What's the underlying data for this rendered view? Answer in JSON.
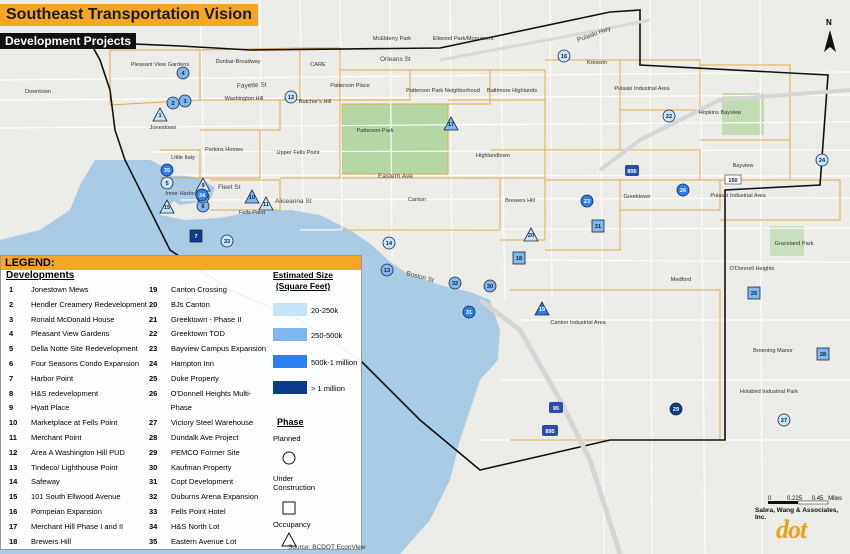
{
  "title": "Southeast Transportation Vision",
  "subtitle": "Development Projects",
  "legend": {
    "header": "LEGEND:",
    "developments_title": "Developments",
    "developments": [
      {
        "num": "1",
        "name": "Jonestown Mews"
      },
      {
        "num": "2",
        "name": "Hendler Creamery Redevelopment"
      },
      {
        "num": "3",
        "name": "Ronald McDonald House"
      },
      {
        "num": "4",
        "name": "Pleasant View Gardens"
      },
      {
        "num": "5",
        "name": "Della Notte Site Redevelopment"
      },
      {
        "num": "6",
        "name": "Four Seasons Condo Expansion"
      },
      {
        "num": "7",
        "name": "Harbor Point"
      },
      {
        "num": "8",
        "name": "H&S redevelopment"
      },
      {
        "num": "9",
        "name": "Hyatt Place"
      },
      {
        "num": "10",
        "name": "Marketplace at Fells Point"
      },
      {
        "num": "11",
        "name": "Merchant Point"
      },
      {
        "num": "12",
        "name": "Area A Washington Hill PUD"
      },
      {
        "num": "13",
        "name": "Tindeco/ Lighthouse Point"
      },
      {
        "num": "14",
        "name": "Safeway"
      },
      {
        "num": "15",
        "name": "101 South Ellwood Avenue"
      },
      {
        "num": "16",
        "name": "Pompeian Expansion"
      },
      {
        "num": "17",
        "name": "Merchant Hill Phase I and II"
      },
      {
        "num": "18",
        "name": "Brewers Hill"
      },
      {
        "num": "19",
        "name": "Canton Crossing"
      },
      {
        "num": "20",
        "name": "BJs Canton"
      },
      {
        "num": "21",
        "name": "Greektown - Phase II"
      },
      {
        "num": "22",
        "name": "Greektown TOD"
      },
      {
        "num": "23",
        "name": "Bayview Campus Expansion"
      },
      {
        "num": "24",
        "name": "Hampton Inn"
      },
      {
        "num": "25",
        "name": "Duke Property"
      },
      {
        "num": "26",
        "name": "O'Donnell Heights Multi-Phase"
      },
      {
        "num": "27",
        "name": "Victory Steel Warehouse"
      },
      {
        "num": "28",
        "name": "Dundalk Ave Project"
      },
      {
        "num": "29",
        "name": "PEMCO Former Site"
      },
      {
        "num": "30",
        "name": "Kaufman Property"
      },
      {
        "num": "31",
        "name": "Copt Development"
      },
      {
        "num": "32",
        "name": "Duburns Arena Expansion"
      },
      {
        "num": "33",
        "name": "Fells Point Hotel"
      },
      {
        "num": "34",
        "name": "H&S North Lot"
      },
      {
        "num": "35",
        "name": "Eastern Avenue Lot"
      }
    ],
    "size_title_1": "Estimated Size",
    "size_title_2": "(Square Feet)",
    "sizes": [
      {
        "label": "20-250k",
        "color": "#c6e4f7"
      },
      {
        "label": "250-500k",
        "color": "#7fb6ee"
      },
      {
        "label": "500k-1 million",
        "color": "#2b7ef0"
      },
      {
        "label": "> 1 million",
        "color": "#0c3d8c"
      }
    ],
    "phase_title": "Phase",
    "phases": [
      {
        "label": "Planned",
        "shape": "circle"
      },
      {
        "label": "Under Construction",
        "shape": "square"
      },
      {
        "label": "Occupancy",
        "shape": "triangle"
      }
    ]
  },
  "source": "Source: BCDOT EconView",
  "firm": "Sabra, Wang & Associates, Inc.",
  "logo": "dot",
  "north": "N",
  "scale": {
    "ticks": [
      "0",
      "0.225",
      "0.45"
    ],
    "unit": "Miles"
  },
  "places": {
    "downtown": "Downtown",
    "pleasant_view": "Pleasant View Gardens",
    "dunbar": "Dunbar-Broadway",
    "care": "CARE",
    "mcelderry": "McElderry Park",
    "ellwood": "Ellwood Park/Monument",
    "kresson": "Kresson",
    "washington_hill": "Washington Hill",
    "butchers_hill": "Butcher's Hill",
    "patterson_place": "Patterson Place",
    "patterson_park_nbhd": "Patterson Park Neighborhood",
    "baltimore_highlands": "Baltimore Highlands",
    "pulaski_area": "Pulaski Industrial Area",
    "hopkins": "Hopkins Bayview",
    "jonestown": "Jonestown",
    "little_italy": "Little Italy",
    "perkins": "Perkins Homes",
    "upper_fells": "Upper Fells Point",
    "patterson_park": "Patterson Park",
    "highlandtown": "Highlandtown",
    "bayview": "Bayview",
    "inner_harbor": "Inner Harbor",
    "fells_point": "Fells Point",
    "canton": "Canton",
    "brewers_hill": "Brewers Hill",
    "greektown": "Greektown",
    "pulaski_area2": "Pulaski Industrial Area",
    "graceland": "Graceland Park",
    "medford": "Medford",
    "odonnell": "O'Donnell Heights",
    "canton_industrial": "Canton Industrial Area",
    "broening": "Broening Manor",
    "holabird": "Holabird Industrial Park"
  },
  "streets": {
    "orleans": "Orleans St",
    "fayette": "Fayette St",
    "eastern": "Eastern Ave",
    "fleet": "Fleet St",
    "aliceanna": "Aliceanna St",
    "boston": "Boston St",
    "pulaski_hwy": "Pulaski Hwy"
  },
  "shields": {
    "i895": "895",
    "i95": "95",
    "i895b": "895",
    "us150": "150"
  },
  "sites": [
    {
      "num": "1",
      "shape": "triangle",
      "color": "#c6e4f7"
    },
    {
      "num": "2",
      "shape": "circle",
      "color": "#7fb6ee"
    },
    {
      "num": "3",
      "shape": "circle",
      "color": "#7fb6ee"
    },
    {
      "num": "4",
      "shape": "circle",
      "color": "#7fb6ee"
    },
    {
      "num": "5",
      "shape": "circle",
      "color": "#c6e4f7"
    },
    {
      "num": "6",
      "shape": "circle",
      "color": "#7fb6ee"
    },
    {
      "num": "7",
      "shape": "square",
      "color": "#0c3d8c"
    },
    {
      "num": "8",
      "shape": "circle",
      "color": "#7fb6ee"
    },
    {
      "num": "9",
      "shape": "triangle",
      "color": "#c6e4f7"
    },
    {
      "num": "10",
      "shape": "triangle",
      "color": "#7fb6ee"
    },
    {
      "num": "11",
      "shape": "triangle",
      "color": "#c6e4f7"
    },
    {
      "num": "12",
      "shape": "circle",
      "color": "#c6e4f7"
    },
    {
      "num": "13",
      "shape": "circle",
      "color": "#7fb6ee"
    },
    {
      "num": "14",
      "shape": "circle",
      "color": "#c6e4f7"
    },
    {
      "num": "15",
      "shape": "triangle",
      "color": "#c6e4f7"
    },
    {
      "num": "16",
      "shape": "circle",
      "color": "#c6e4f7"
    },
    {
      "num": "17",
      "shape": "triangle",
      "color": "#7fb6ee"
    },
    {
      "num": "18",
      "shape": "square",
      "color": "#7fb6ee"
    },
    {
      "num": "19",
      "shape": "triangle",
      "color": "#2b7ef0"
    },
    {
      "num": "20",
      "shape": "triangle",
      "color": "#c6e4f7"
    },
    {
      "num": "21",
      "shape": "square",
      "color": "#7fb6ee"
    },
    {
      "num": "22",
      "shape": "circle",
      "color": "#c6e4f7"
    },
    {
      "num": "23",
      "shape": "circle",
      "color": "#2b7ef0"
    },
    {
      "num": "24",
      "shape": "circle",
      "color": "#c6e4f7"
    },
    {
      "num": "25",
      "shape": "square",
      "color": "#7fb6ee"
    },
    {
      "num": "26",
      "shape": "circle",
      "color": "#2b7ef0"
    },
    {
      "num": "27",
      "shape": "circle",
      "color": "#c6e4f7"
    },
    {
      "num": "28",
      "shape": "square",
      "color": "#7fb6ee"
    },
    {
      "num": "29",
      "shape": "circle",
      "color": "#0c3d8c"
    },
    {
      "num": "30",
      "shape": "circle",
      "color": "#7fb6ee"
    },
    {
      "num": "31",
      "shape": "circle",
      "color": "#2b7ef0"
    },
    {
      "num": "32",
      "shape": "circle",
      "color": "#7fb6ee"
    },
    {
      "num": "33",
      "shape": "circle",
      "color": "#c6e4f7"
    },
    {
      "num": "34",
      "shape": "circle",
      "color": "#2b7ef0"
    },
    {
      "num": "35",
      "shape": "circle",
      "color": "#2b7ef0"
    }
  ]
}
